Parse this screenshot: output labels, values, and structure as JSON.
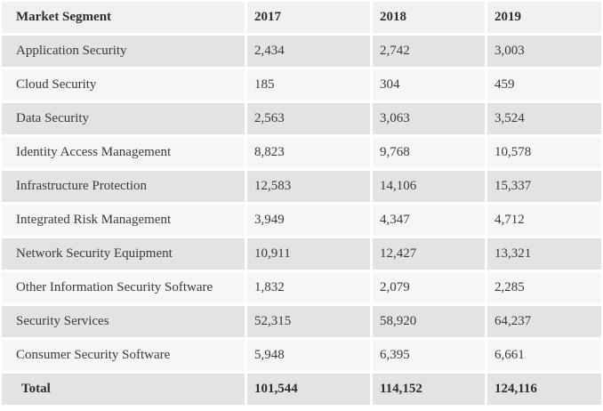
{
  "colors": {
    "header_bg": "#f0f0f0",
    "row_dark_bg": "#e3e3e3",
    "row_light_bg": "#f6f6f6",
    "text": "#3a3a3a",
    "separator": "#ffffff"
  },
  "table": {
    "columns": [
      "Market Segment",
      "2017",
      "2018",
      "2019"
    ],
    "rows": [
      {
        "label": "Application Security",
        "values": [
          "2,434",
          "2,742",
          "3,003"
        ]
      },
      {
        "label": "Cloud Security",
        "values": [
          "185",
          "304",
          "459"
        ]
      },
      {
        "label": "Data Security",
        "values": [
          "2,563",
          "3,063",
          "3,524"
        ]
      },
      {
        "label": "Identity Access Management",
        "values": [
          "8,823",
          "9,768",
          "10,578"
        ]
      },
      {
        "label": "Infrastructure Protection",
        "values": [
          "12,583",
          "14,106",
          "15,337"
        ]
      },
      {
        "label": "Integrated Risk Management",
        "values": [
          "3,949",
          "4,347",
          "4,712"
        ]
      },
      {
        "label": "Network Security Equipment",
        "values": [
          "10,911",
          "12,427",
          "13,321"
        ]
      },
      {
        "label": "Other Information Security Software",
        "values": [
          "1,832",
          "2,079",
          "2,285"
        ]
      },
      {
        "label": "Security Services",
        "values": [
          "52,315",
          "58,920",
          "64,237"
        ]
      },
      {
        "label": "Consumer Security Software",
        "values": [
          "5,948",
          "6,395",
          "6,661"
        ]
      }
    ],
    "total": {
      "label": "Total",
      "values": [
        "101,544",
        "114,152",
        "124,116"
      ]
    }
  },
  "chart_data": {
    "type": "table",
    "columns": [
      "Market Segment",
      "2017",
      "2018",
      "2019"
    ],
    "years": [
      2017,
      2018,
      2019
    ],
    "rows": [
      {
        "segment": "Application Security",
        "values": [
          2434,
          2742,
          3003
        ]
      },
      {
        "segment": "Cloud Security",
        "values": [
          185,
          304,
          459
        ]
      },
      {
        "segment": "Data Security",
        "values": [
          2563,
          3063,
          3524
        ]
      },
      {
        "segment": "Identity Access Management",
        "values": [
          8823,
          9768,
          10578
        ]
      },
      {
        "segment": "Infrastructure Protection",
        "values": [
          12583,
          14106,
          15337
        ]
      },
      {
        "segment": "Integrated Risk Management",
        "values": [
          3949,
          4347,
          4712
        ]
      },
      {
        "segment": "Network Security Equipment",
        "values": [
          10911,
          12427,
          13321
        ]
      },
      {
        "segment": "Other Information Security Software",
        "values": [
          1832,
          2079,
          2285
        ]
      },
      {
        "segment": "Security Services",
        "values": [
          52315,
          58920,
          64237
        ]
      },
      {
        "segment": "Consumer Security Software",
        "values": [
          5948,
          6395,
          6661
        ]
      },
      {
        "segment": "Total",
        "values": [
          101544,
          114152,
          124116
        ]
      }
    ]
  }
}
